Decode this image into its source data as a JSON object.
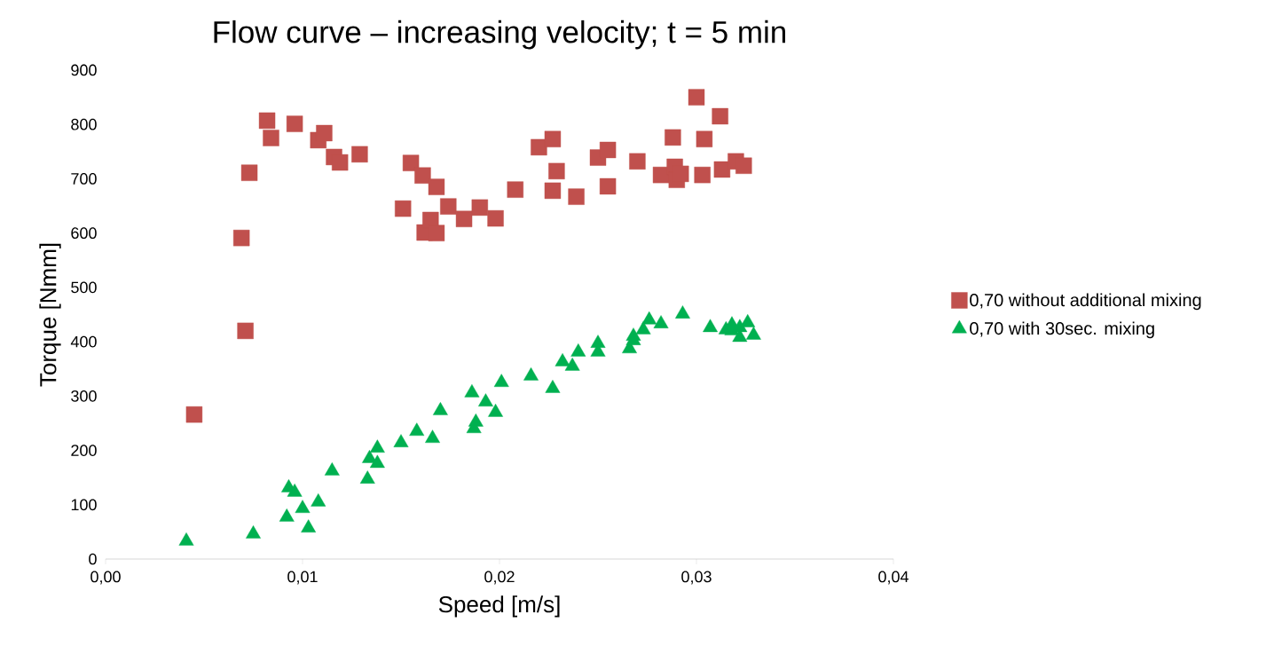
{
  "chart_data": {
    "type": "scatter",
    "title": "Flow curve – increasing velocity; t = 5 min",
    "xlabel": "Speed [m/s]",
    "ylabel": "Torque [Nmm]",
    "xlim": [
      0,
      0.04
    ],
    "ylim": [
      0,
      900
    ],
    "xticks": [
      {
        "value": 0,
        "label": "0,00"
      },
      {
        "value": 0.01,
        "label": "0,01"
      },
      {
        "value": 0.02,
        "label": "0,02"
      },
      {
        "value": 0.03,
        "label": "0,03"
      },
      {
        "value": 0.04,
        "label": "0,04"
      }
    ],
    "yticks": [
      0,
      100,
      200,
      300,
      400,
      500,
      600,
      700,
      800,
      900
    ],
    "grid": false,
    "legend": "right",
    "series": [
      {
        "name": "0,70 without additional mixing",
        "color": "#c0504d",
        "marker": "square",
        "x": [
          0.0045,
          0.0069,
          0.0071,
          0.0073,
          0.0082,
          0.0084,
          0.0096,
          0.0108,
          0.0111,
          0.0116,
          0.0119,
          0.0129,
          0.0151,
          0.0155,
          0.0161,
          0.0162,
          0.0165,
          0.0168,
          0.0168,
          0.0174,
          0.0182,
          0.019,
          0.0198,
          0.0208,
          0.022,
          0.0227,
          0.0227,
          0.0229,
          0.0239,
          0.025,
          0.0255,
          0.0255,
          0.027,
          0.0282,
          0.0288,
          0.0289,
          0.029,
          0.0292,
          0.03,
          0.0304,
          0.0303,
          0.0312,
          0.0313,
          0.032,
          0.0324
        ],
        "values": [
          266,
          591,
          420,
          711,
          807,
          775,
          801,
          771,
          784,
          740,
          730,
          745,
          645,
          729,
          706,
          601,
          624,
          600,
          685,
          649,
          626,
          647,
          627,
          680,
          758,
          773,
          678,
          714,
          667,
          739,
          753,
          686,
          732,
          707,
          776,
          722,
          698,
          709,
          850,
          773,
          707,
          815,
          717,
          732,
          724
        ]
      },
      {
        "name": "0,70 with 30sec. mixing",
        "color": "#00b050",
        "marker": "triangle",
        "x": [
          0.0041,
          0.0075,
          0.0092,
          0.0093,
          0.0096,
          0.01,
          0.0103,
          0.0108,
          0.0115,
          0.0133,
          0.0134,
          0.0138,
          0.0138,
          0.015,
          0.0158,
          0.0166,
          0.017,
          0.0186,
          0.0187,
          0.0188,
          0.0193,
          0.0198,
          0.0201,
          0.0216,
          0.0227,
          0.0232,
          0.0237,
          0.024,
          0.025,
          0.025,
          0.0266,
          0.0268,
          0.0268,
          0.0273,
          0.0276,
          0.0282,
          0.0293,
          0.0307,
          0.0315,
          0.0318,
          0.0318,
          0.0322,
          0.0322,
          0.0326,
          0.0329
        ],
        "values": [
          33,
          46,
          77,
          131,
          123,
          93,
          57,
          105,
          162,
          147,
          185,
          204,
          176,
          214,
          235,
          222,
          273,
          306,
          240,
          252,
          289,
          270,
          325,
          337,
          314,
          363,
          355,
          381,
          397,
          381,
          387,
          410,
          402,
          422,
          440,
          433,
          451,
          426,
          422,
          431,
          420,
          408,
          426,
          435,
          412
        ]
      }
    ]
  }
}
